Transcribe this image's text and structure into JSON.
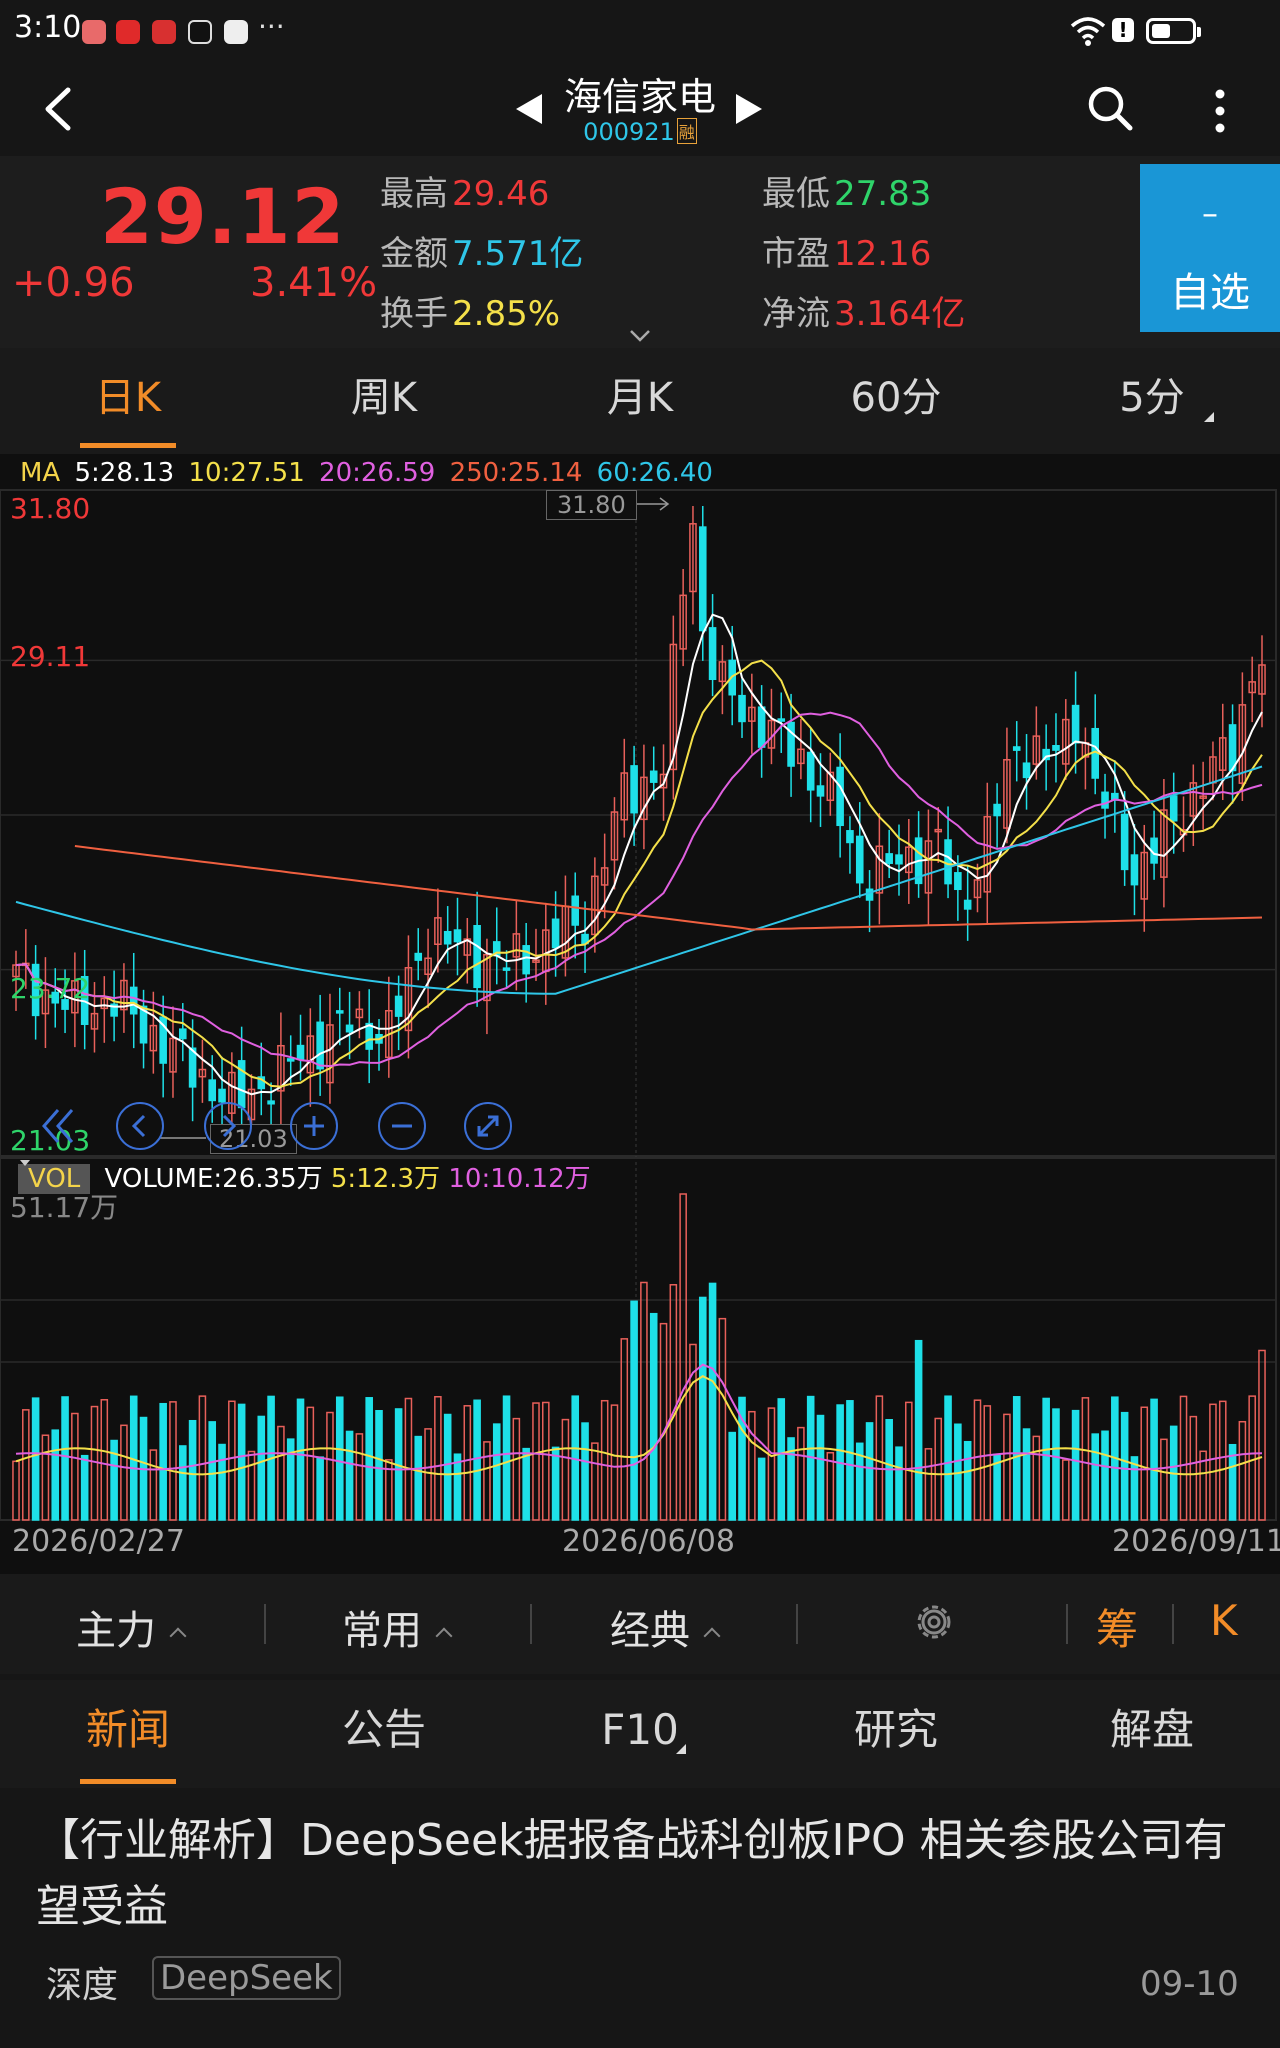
{
  "status_bar": {
    "time": "3:10",
    "more": "···"
  },
  "nav": {
    "stock_name": "海信家电",
    "stock_code": "000921",
    "margin_badge": "融"
  },
  "quote": {
    "price": "29.12",
    "change": "+0.96",
    "change_pct": "3.41%",
    "stats": [
      {
        "key": "最高",
        "value": "29.46",
        "color": "#f03838"
      },
      {
        "key": "最低",
        "value": "27.83",
        "color": "#2fd46a"
      },
      {
        "key": "金额",
        "value": "7.571亿",
        "color": "#2fc6e8"
      },
      {
        "key": "市盈",
        "value": "12.16",
        "color": "#f03838"
      },
      {
        "key": "换手",
        "value": "2.85%",
        "color": "#f4e04a"
      },
      {
        "key": "净流",
        "value": "3.164亿",
        "color": "#f03838"
      }
    ],
    "watch_minus": "–",
    "watch_label": "自选"
  },
  "period_tabs": [
    "日K",
    "周K",
    "月K",
    "60分",
    "5分"
  ],
  "chart": {
    "ma_legend": [
      {
        "text": "MA",
        "color": "#f4d44a"
      },
      {
        "text": "5:28.13",
        "color": "#ffffff"
      },
      {
        "text": "10:27.51",
        "color": "#f4e04a"
      },
      {
        "text": "20:26.59",
        "color": "#e060e0"
      },
      {
        "text": "250:25.14",
        "color": "#f06040"
      },
      {
        "text": "60:26.40",
        "color": "#2fc6e8"
      }
    ],
    "y_labels": [
      {
        "text": "31.80",
        "color": "#f03838"
      },
      {
        "text": "29.11",
        "color": "#f03838"
      },
      {
        "text": "23.72",
        "color": "#2fd46a"
      },
      {
        "text": "21.03",
        "color": "#2fd46a"
      }
    ],
    "peak_label": "31.80",
    "low_label": "21.03",
    "vol_tag": "VOL",
    "vol_legend": [
      {
        "text": "VOLUME:26.35万",
        "color": "#ffffff"
      },
      {
        "text": "5:12.3万",
        "color": "#f4e04a"
      },
      {
        "text": "10:10.12万",
        "color": "#e060e0"
      }
    ],
    "vol_max": "51.17万",
    "dates": [
      "2026/02/27",
      "2026/06/08",
      "2026/09/11"
    ],
    "colors": {
      "up": "#e8605a",
      "down": "#1ee0e8"
    }
  },
  "chart_data": {
    "type": "candlestick",
    "y_axis_labels": [
      "31.80",
      "29.11",
      "23.72",
      "21.03"
    ],
    "ylim": [
      21.03,
      31.8
    ],
    "x_tick_labels": [
      "2026/02/27",
      "2026/06/08",
      "2026/09/11"
    ],
    "high": 31.8,
    "low": 21.03,
    "series": [
      {
        "name": "5",
        "last": 28.13
      },
      {
        "name": "10",
        "last": 27.51
      },
      {
        "name": "20",
        "last": 26.59
      },
      {
        "name": "250",
        "last": 25.14
      },
      {
        "name": "60",
        "last": 26.4
      }
    ],
    "volume": {
      "last": "26.35万",
      "ma5": "12.3万",
      "ma10": "10.12万",
      "max": "51.17万"
    }
  },
  "indicator_bar": {
    "items": [
      "主力",
      "常用",
      "经典"
    ],
    "chip": "筹",
    "k": "K"
  },
  "news_tabs": [
    "新闻",
    "公告",
    "F10",
    "研究",
    "解盘"
  ],
  "news": {
    "title": "【行业解析】DeepSeek据报备战科创板IPO 相关参股公司有望受益",
    "category": "深度",
    "tag": "DeepSeek",
    "date": "09-10"
  }
}
